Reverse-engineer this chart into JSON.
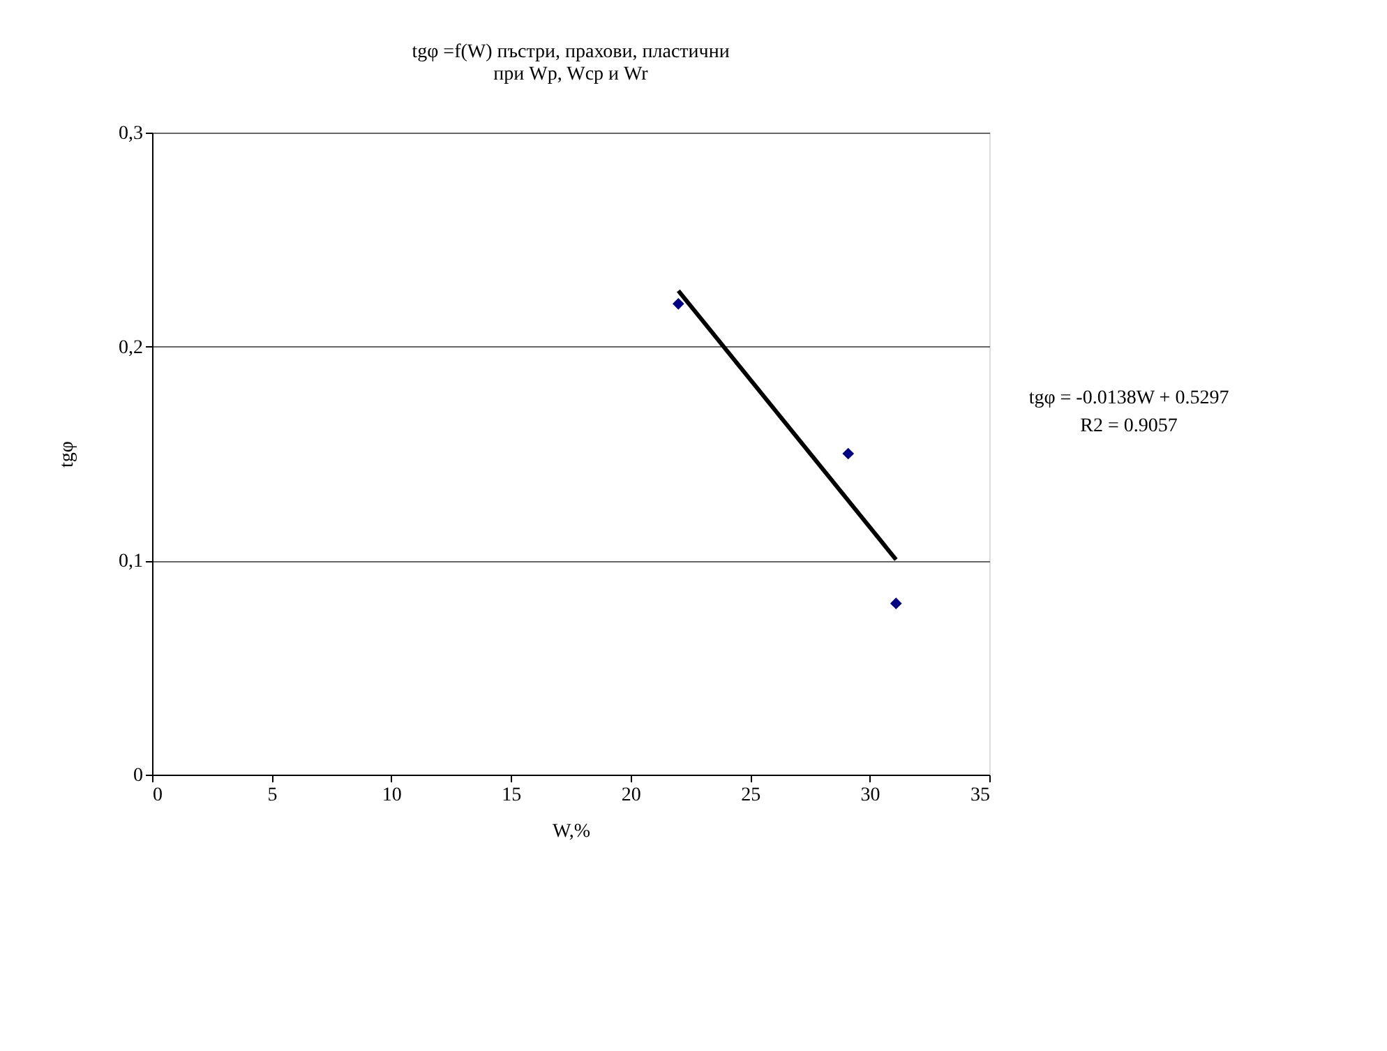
{
  "chart_data": {
    "type": "scatter",
    "title": [
      "tgφ =f(W) пъстри, прахови, пластични",
      "при  Wp, Wcp и Wr"
    ],
    "xlabel": "W,%",
    "ylabel": "tgφ",
    "xlim": [
      0,
      35
    ],
    "xticks": [
      0,
      5,
      10,
      15,
      20,
      25,
      30,
      35
    ],
    "ylim": [
      0,
      0.3
    ],
    "yticks": [
      {
        "value": 0,
        "label": "0"
      },
      {
        "value": 0.1,
        "label": "0,1"
      },
      {
        "value": 0.2,
        "label": "0,2"
      },
      {
        "value": 0.3,
        "label": "0,3"
      }
    ],
    "grid": "y",
    "marker": "diamond",
    "series": [
      {
        "color": "#000080",
        "x": [
          22,
          29.1,
          31.1
        ],
        "values": [
          0.22,
          0.15,
          0.08
        ]
      },
      {
        "type": "line",
        "color": "#000000",
        "x": [
          22,
          31.1
        ],
        "values": [
          0.2261,
          0.1005
        ],
        "marker": "none",
        "line_style": "solid"
      }
    ],
    "annotations": [
      "tgφ = -0.0138W + 0.5297",
      "R2 = 0.9057"
    ]
  }
}
